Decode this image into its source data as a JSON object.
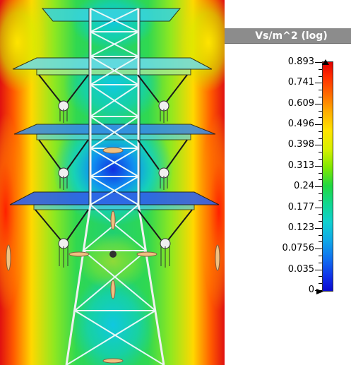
{
  "legend": {
    "title": "Vs/m^2 (log)",
    "ticks": [
      "0.893",
      "0.741",
      "0.609",
      "0.496",
      "0.398",
      "0.313",
      "0.24",
      "0.177",
      "0.123",
      "0.0756",
      "0.035",
      "0"
    ],
    "colors": {
      "max": "#e00000",
      "high": "#ffe400",
      "mid": "#20d840",
      "low": "#10d0d0",
      "min": "#0a0ad0"
    }
  },
  "icons": {
    "tower": "lattice-tower-icon",
    "insulator": "insulator-string-icon",
    "field-arrow": "field-arrow-icon",
    "max-marker": "max-marker-icon",
    "min-marker": "min-marker-icon"
  }
}
